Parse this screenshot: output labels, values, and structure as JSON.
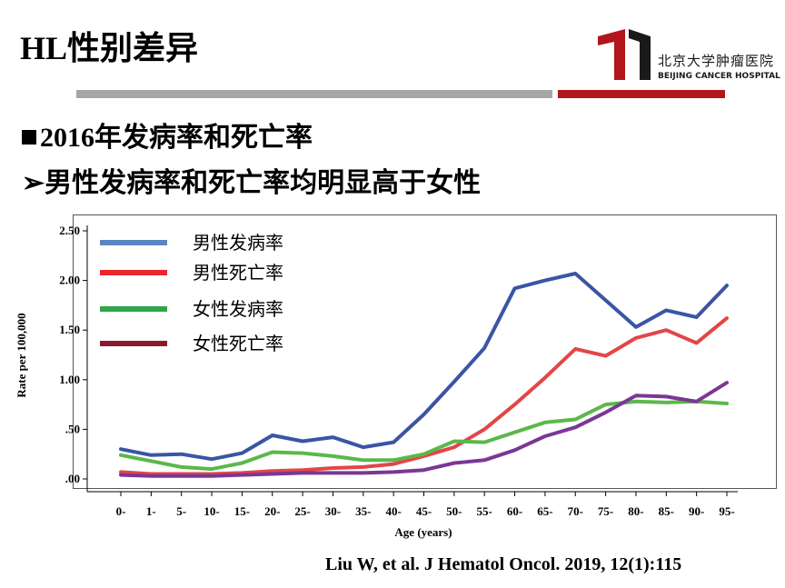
{
  "slide": {
    "title": "HL性别差异",
    "bullet1": "2016年发病率和死亡率",
    "bullet2": "男性发病率和死亡率均明显高于女性",
    "bullet2_marker": "➢",
    "citation": "Liu W, et al. J Hematol Oncol. 2019, 12(1):115"
  },
  "logo": {
    "cn": "北京大学肿瘤医院",
    "en": "BEIJING CANCER HOSPITAL",
    "color": "#b2151d"
  },
  "chart_data": {
    "type": "line",
    "xlabel": "Age (years)",
    "ylabel": "Rate per 100,000",
    "ylim": [
      0,
      2.5
    ],
    "yticks": [
      ".00",
      ".50",
      "1.00",
      "1.50",
      "2.00",
      "2.50"
    ],
    "categories": [
      "0-",
      "1-",
      "5-",
      "10-",
      "15-",
      "20-",
      "25-",
      "30-",
      "35-",
      "40-",
      "45-",
      "50-",
      "55-",
      "60-",
      "65-",
      "70-",
      "75-",
      "80-",
      "85-",
      "90-",
      "95-"
    ],
    "grid": false,
    "legend_position": "top-left",
    "series": [
      {
        "name": "男性发病率",
        "color": "#3a55a4",
        "legend_color": "#5b86c4",
        "values": [
          0.3,
          0.24,
          0.25,
          0.2,
          0.26,
          0.44,
          0.38,
          0.42,
          0.32,
          0.37,
          0.65,
          0.98,
          1.32,
          1.92,
          2.0,
          2.07,
          1.8,
          1.53,
          1.7,
          1.63,
          1.95
        ]
      },
      {
        "name": "男性死亡率",
        "color": "#e34648",
        "legend_color": "#e8282b",
        "values": [
          0.07,
          0.05,
          0.05,
          0.05,
          0.06,
          0.08,
          0.09,
          0.11,
          0.12,
          0.15,
          0.23,
          0.32,
          0.5,
          0.75,
          1.02,
          1.31,
          1.24,
          1.42,
          1.5,
          1.37,
          1.62
        ]
      },
      {
        "name": "女性发病率",
        "color": "#5bb84a",
        "legend_color": "#2ea64a",
        "values": [
          0.24,
          0.18,
          0.12,
          0.1,
          0.16,
          0.27,
          0.26,
          0.23,
          0.19,
          0.19,
          0.25,
          0.38,
          0.37,
          0.47,
          0.57,
          0.6,
          0.75,
          0.78,
          0.77,
          0.78,
          0.76
        ]
      },
      {
        "name": "女性死亡率",
        "color": "#7a3795",
        "legend_color": "#8b1a2e",
        "values": [
          0.04,
          0.03,
          0.03,
          0.03,
          0.04,
          0.05,
          0.06,
          0.06,
          0.06,
          0.07,
          0.09,
          0.16,
          0.19,
          0.29,
          0.43,
          0.52,
          0.67,
          0.84,
          0.83,
          0.78,
          0.97
        ]
      }
    ]
  }
}
